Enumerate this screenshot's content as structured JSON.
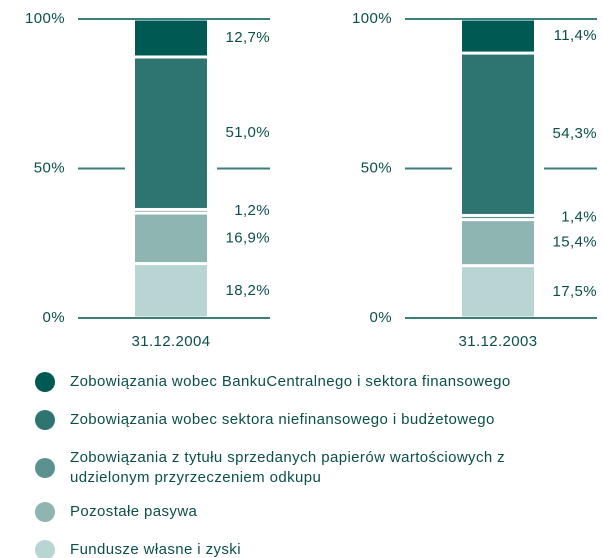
{
  "chart_data": {
    "type": "bar",
    "stacked": true,
    "categories": [
      "31.12.2004",
      "31.12.2003"
    ],
    "ylim": [
      0,
      100
    ],
    "yticks": [
      {
        "value": 0,
        "label": "0%"
      },
      {
        "value": 50,
        "label": "50%"
      },
      {
        "value": 100,
        "label": "100%"
      }
    ],
    "series": [
      {
        "name": "Zobowiązania wobec BankuCentralnego i sektora finansowego",
        "color": "#005953",
        "values": [
          12.7,
          11.4
        ],
        "value_labels": [
          "12,7%",
          "11,4%"
        ]
      },
      {
        "name": "Zobowiązania wobec sektora niefinansowego i budżetowego",
        "color": "#2e7572",
        "values": [
          51.0,
          54.3
        ],
        "value_labels": [
          "51,0%",
          "54,3%"
        ]
      },
      {
        "name": "Zobowiązania z tytułu sprzedanych papierów wartościowych z udzielonym przyrzeczeniem odkupu",
        "color": "#5b918e",
        "values": [
          1.2,
          1.4
        ],
        "value_labels": [
          "1,2%",
          "1,4%"
        ]
      },
      {
        "name": "Pozostałe pasywa",
        "color": "#8fb5b3",
        "values": [
          16.9,
          15.4
        ],
        "value_labels": [
          "16,9%",
          "15,4%"
        ]
      },
      {
        "name": "Fundusze własne i zyski",
        "color": "#b9d5d3",
        "values": [
          18.2,
          17.5
        ],
        "value_labels": [
          "18,2%",
          "17,5%"
        ]
      }
    ]
  }
}
